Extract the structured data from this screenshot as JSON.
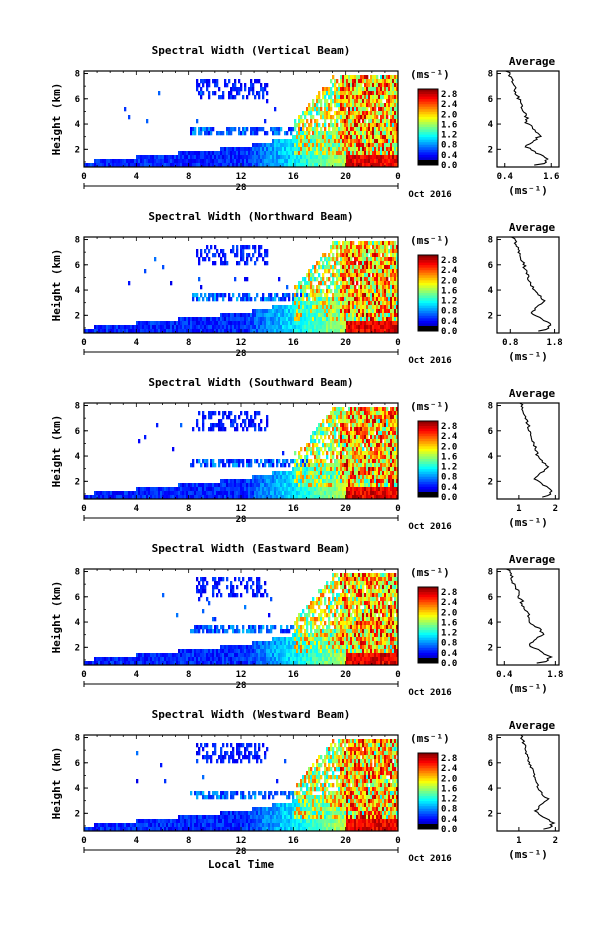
{
  "chart_data": {
    "type": "heatmap",
    "panels": [
      {
        "title": "Spectral Width (Vertical Beam)",
        "avg_ticks": [
          "0.4",
          "1.6"
        ],
        "avg_tick_values": [
          0.4,
          1.6
        ],
        "avg_xlim": [
          0.2,
          1.8
        ]
      },
      {
        "title": "Spectral Width (Northward Beam)",
        "avg_ticks": [
          "0.8",
          "1.8"
        ],
        "avg_tick_values": [
          0.8,
          1.8
        ],
        "avg_xlim": [
          0.5,
          1.9
        ]
      },
      {
        "title": "Spectral Width (Southward Beam)",
        "avg_ticks": [
          "1",
          "2"
        ],
        "avg_tick_values": [
          1,
          2
        ],
        "avg_xlim": [
          0.4,
          2.1
        ]
      },
      {
        "title": "Spectral Width (Eastward Beam)",
        "avg_ticks": [
          "0.4",
          "1.8"
        ],
        "avg_tick_values": [
          0.4,
          1.8
        ],
        "avg_xlim": [
          0.2,
          1.9
        ]
      },
      {
        "title": "Spectral Width (Westward Beam)",
        "avg_ticks": [
          "1",
          "2"
        ],
        "avg_tick_values": [
          1,
          2
        ],
        "avg_xlim": [
          0.4,
          2.1
        ]
      }
    ],
    "ylabel": "Height (km)",
    "xlabel": "Local Time",
    "x_ticks": [
      "0",
      "4",
      "8",
      "12",
      "16",
      "20",
      "0"
    ],
    "x_tick_values": [
      0,
      4,
      8,
      12,
      16,
      20,
      24
    ],
    "xlim": [
      0,
      24
    ],
    "y_ticks": [
      "2",
      "4",
      "6",
      "8"
    ],
    "y_tick_values": [
      2,
      4,
      6,
      8
    ],
    "ylim": [
      0.6,
      8.2
    ],
    "date_day": "28",
    "date_label": "Oct 2016",
    "colorbar_unit": "(ms⁻¹)",
    "colorbar_ticks": [
      "2.8",
      "2.4",
      "2.0",
      "1.6",
      "1.2",
      "0.8",
      "0.4",
      "0.0"
    ],
    "colorbar_tick_values": [
      2.8,
      2.4,
      2.0,
      1.6,
      1.2,
      0.8,
      0.4,
      0.0
    ],
    "avg_title": "Average",
    "avg_ylim": [
      0.6,
      8.2
    ],
    "avg_unit": "(ms⁻¹)"
  }
}
